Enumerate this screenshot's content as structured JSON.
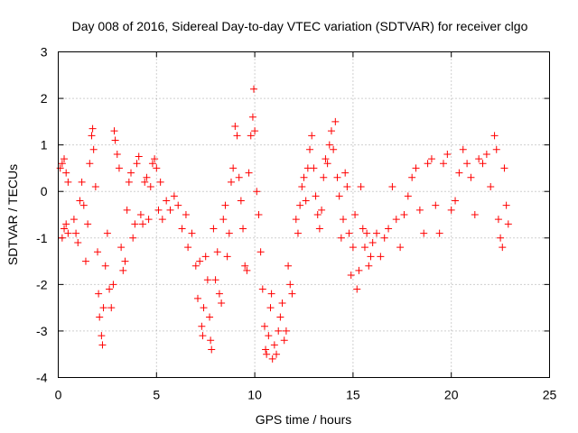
{
  "chart_data": {
    "type": "scatter",
    "title": "Day 008 of 2016, Sidereal Day-to-day VTEC variation (SDTVAR) for receiver clgo",
    "xlabel": "GPS time / hours",
    "ylabel": "SDTVAR / TECUs",
    "xlim": [
      0,
      25
    ],
    "ylim": [
      -4,
      3
    ],
    "xticks": [
      0,
      5,
      10,
      15,
      20,
      25
    ],
    "yticks": [
      -4,
      -3,
      -2,
      -1,
      0,
      1,
      2,
      3
    ],
    "xtick_labels": [
      "0",
      "5",
      "10",
      "15",
      "20",
      "25"
    ],
    "ytick_labels": [
      "-4",
      "-3",
      "-2",
      "-1",
      "0",
      "1",
      "2",
      "3"
    ],
    "grid": true,
    "marker": "plus",
    "series": [
      {
        "name": "SDTVAR",
        "color": "#ff0000",
        "points": [
          [
            0.1,
            0.5
          ],
          [
            0.2,
            0.6
          ],
          [
            0.3,
            0.7
          ],
          [
            0.4,
            0.4
          ],
          [
            0.5,
            0.2
          ],
          [
            0.3,
            -0.8
          ],
          [
            0.4,
            -0.7
          ],
          [
            0.5,
            -0.9
          ],
          [
            0.2,
            -1.0
          ],
          [
            0.8,
            -0.6
          ],
          [
            0.9,
            -0.9
          ],
          [
            1.0,
            -1.1
          ],
          [
            1.1,
            -0.2
          ],
          [
            1.2,
            0.2
          ],
          [
            1.3,
            -0.3
          ],
          [
            1.4,
            -1.5
          ],
          [
            1.5,
            -0.7
          ],
          [
            1.6,
            0.6
          ],
          [
            1.7,
            1.2
          ],
          [
            1.75,
            1.35
          ],
          [
            1.8,
            0.9
          ],
          [
            1.9,
            0.1
          ],
          [
            2.0,
            -1.3
          ],
          [
            2.05,
            -2.2
          ],
          [
            2.1,
            -2.7
          ],
          [
            2.2,
            -3.1
          ],
          [
            2.25,
            -3.3
          ],
          [
            2.3,
            -2.5
          ],
          [
            2.4,
            -1.6
          ],
          [
            2.5,
            -0.9
          ],
          [
            2.6,
            -2.1
          ],
          [
            2.7,
            -2.5
          ],
          [
            2.8,
            -2.0
          ],
          [
            2.85,
            1.3
          ],
          [
            2.9,
            1.1
          ],
          [
            3.0,
            0.8
          ],
          [
            3.1,
            0.5
          ],
          [
            3.2,
            -1.2
          ],
          [
            3.3,
            -1.7
          ],
          [
            3.4,
            -1.5
          ],
          [
            3.5,
            -0.4
          ],
          [
            3.6,
            0.2
          ],
          [
            3.7,
            0.4
          ],
          [
            3.8,
            -1.0
          ],
          [
            3.9,
            -0.7
          ],
          [
            4.0,
            0.6
          ],
          [
            4.1,
            0.75
          ],
          [
            4.2,
            -0.5
          ],
          [
            4.3,
            -0.7
          ],
          [
            4.4,
            0.2
          ],
          [
            4.5,
            0.3
          ],
          [
            4.6,
            -0.6
          ],
          [
            4.7,
            0.1
          ],
          [
            4.8,
            0.6
          ],
          [
            4.9,
            0.7
          ],
          [
            5.0,
            0.5
          ],
          [
            5.1,
            -0.4
          ],
          [
            5.2,
            0.2
          ],
          [
            5.3,
            -0.6
          ],
          [
            5.5,
            -0.2
          ],
          [
            5.7,
            -0.4
          ],
          [
            5.9,
            -0.1
          ],
          [
            6.1,
            -0.3
          ],
          [
            6.3,
            -0.8
          ],
          [
            6.5,
            -0.5
          ],
          [
            6.6,
            -1.2
          ],
          [
            6.8,
            -0.9
          ],
          [
            7.0,
            -1.6
          ],
          [
            7.1,
            -2.3
          ],
          [
            7.2,
            -1.5
          ],
          [
            7.3,
            -2.9
          ],
          [
            7.35,
            -3.1
          ],
          [
            7.4,
            -2.5
          ],
          [
            7.5,
            -1.4
          ],
          [
            7.6,
            -1.9
          ],
          [
            7.7,
            -2.7
          ],
          [
            7.75,
            -3.2
          ],
          [
            7.8,
            -3.4
          ],
          [
            7.9,
            -0.8
          ],
          [
            8.0,
            -1.9
          ],
          [
            8.1,
            -1.3
          ],
          [
            8.2,
            -2.2
          ],
          [
            8.3,
            -2.4
          ],
          [
            8.4,
            -0.6
          ],
          [
            8.5,
            -0.3
          ],
          [
            8.6,
            -1.4
          ],
          [
            8.7,
            -0.9
          ],
          [
            8.8,
            0.2
          ],
          [
            8.9,
            0.5
          ],
          [
            9.0,
            1.4
          ],
          [
            9.1,
            1.2
          ],
          [
            9.2,
            0.3
          ],
          [
            9.3,
            -0.2
          ],
          [
            9.4,
            -0.8
          ],
          [
            9.5,
            -1.6
          ],
          [
            9.6,
            -1.7
          ],
          [
            9.7,
            0.4
          ],
          [
            9.8,
            1.2
          ],
          [
            9.9,
            1.6
          ],
          [
            9.95,
            2.2
          ],
          [
            10.0,
            1.3
          ],
          [
            10.1,
            0.0
          ],
          [
            10.2,
            -0.5
          ],
          [
            10.3,
            -1.3
          ],
          [
            10.4,
            -2.1
          ],
          [
            10.5,
            -2.9
          ],
          [
            10.55,
            -3.4
          ],
          [
            10.6,
            -3.5
          ],
          [
            10.7,
            -3.1
          ],
          [
            10.8,
            -2.5
          ],
          [
            10.85,
            -2.2
          ],
          [
            10.9,
            -3.6
          ],
          [
            11.0,
            -3.3
          ],
          [
            11.1,
            -3.5
          ],
          [
            11.2,
            -3.0
          ],
          [
            11.3,
            -2.7
          ],
          [
            11.4,
            -2.4
          ],
          [
            11.5,
            -3.2
          ],
          [
            11.6,
            -3.0
          ],
          [
            11.7,
            -1.6
          ],
          [
            11.8,
            -2.0
          ],
          [
            11.9,
            -2.2
          ],
          [
            12.1,
            -0.6
          ],
          [
            12.2,
            -0.9
          ],
          [
            12.3,
            -0.3
          ],
          [
            12.4,
            0.1
          ],
          [
            12.5,
            0.3
          ],
          [
            12.6,
            -0.2
          ],
          [
            12.7,
            0.5
          ],
          [
            12.8,
            0.9
          ],
          [
            12.9,
            1.2
          ],
          [
            13.0,
            0.5
          ],
          [
            13.1,
            -0.1
          ],
          [
            13.2,
            -0.5
          ],
          [
            13.3,
            -0.8
          ],
          [
            13.4,
            -0.4
          ],
          [
            13.5,
            0.3
          ],
          [
            13.6,
            0.7
          ],
          [
            13.7,
            0.6
          ],
          [
            13.8,
            1.0
          ],
          [
            13.9,
            1.3
          ],
          [
            14.0,
            0.9
          ],
          [
            14.1,
            1.5
          ],
          [
            14.2,
            0.3
          ],
          [
            14.3,
            -0.1
          ],
          [
            14.4,
            -1.0
          ],
          [
            14.5,
            -0.6
          ],
          [
            14.6,
            0.4
          ],
          [
            14.7,
            0.1
          ],
          [
            14.8,
            -0.9
          ],
          [
            14.9,
            -1.8
          ],
          [
            15.0,
            -1.2
          ],
          [
            15.1,
            -0.5
          ],
          [
            15.2,
            -2.1
          ],
          [
            15.3,
            -1.7
          ],
          [
            15.4,
            0.1
          ],
          [
            15.5,
            -0.8
          ],
          [
            15.6,
            -1.2
          ],
          [
            15.7,
            -0.9
          ],
          [
            15.8,
            -1.6
          ],
          [
            15.9,
            -1.4
          ],
          [
            16.0,
            -1.1
          ],
          [
            16.2,
            -0.9
          ],
          [
            16.4,
            -1.4
          ],
          [
            16.6,
            -1.0
          ],
          [
            16.8,
            -0.8
          ],
          [
            17.0,
            0.1
          ],
          [
            17.2,
            -0.6
          ],
          [
            17.4,
            -1.2
          ],
          [
            17.6,
            -0.5
          ],
          [
            17.8,
            -0.1
          ],
          [
            18.0,
            0.3
          ],
          [
            18.2,
            0.5
          ],
          [
            18.4,
            -0.4
          ],
          [
            18.6,
            -0.9
          ],
          [
            18.8,
            0.6
          ],
          [
            19.0,
            0.7
          ],
          [
            19.2,
            -0.3
          ],
          [
            19.4,
            -0.9
          ],
          [
            19.6,
            0.6
          ],
          [
            19.8,
            0.8
          ],
          [
            20.0,
            -0.4
          ],
          [
            20.2,
            -0.2
          ],
          [
            20.4,
            0.4
          ],
          [
            20.6,
            0.9
          ],
          [
            20.8,
            0.6
          ],
          [
            21.0,
            0.3
          ],
          [
            21.2,
            -0.5
          ],
          [
            21.4,
            0.7
          ],
          [
            21.6,
            0.6
          ],
          [
            21.8,
            0.8
          ],
          [
            22.0,
            0.1
          ],
          [
            22.2,
            1.2
          ],
          [
            22.3,
            0.9
          ],
          [
            22.4,
            -0.6
          ],
          [
            22.5,
            -1.0
          ],
          [
            22.6,
            -1.2
          ],
          [
            22.7,
            0.5
          ],
          [
            22.8,
            -0.3
          ],
          [
            22.9,
            -0.7
          ]
        ]
      }
    ]
  }
}
